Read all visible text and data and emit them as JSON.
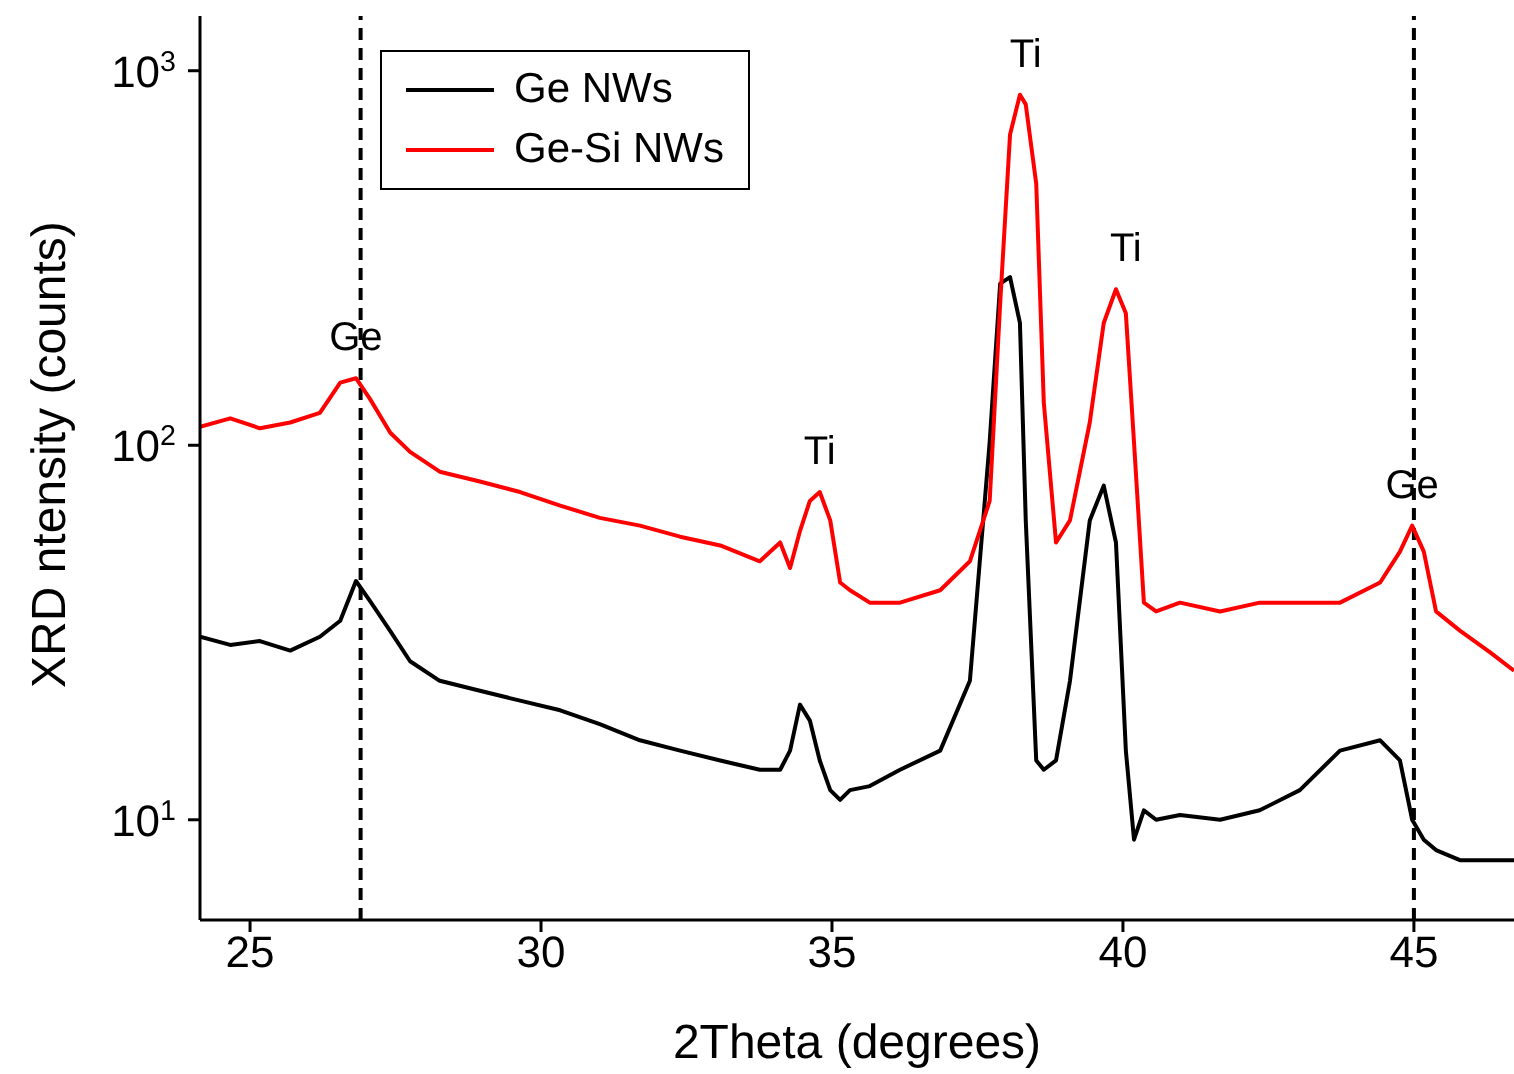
{
  "chart_data": {
    "type": "line",
    "xlabel": "2Theta (degrees)",
    "ylabel": "XRD ntensity (counts)",
    "log": "y",
    "xlim": [
      24.14,
      46.72
    ],
    "xticks": [
      25,
      30,
      35,
      40,
      45
    ],
    "ylim": [
      5.4,
      1400
    ],
    "yticks": [
      {
        "value": 10,
        "label": "10$^{1}$"
      },
      {
        "value": 100,
        "label": "10$^{2}$"
      },
      {
        "value": 1000,
        "label": "10$^{3}$"
      }
    ],
    "grid": false,
    "legend": "top left",
    "marker": "none",
    "line_style": "solid",
    "x": [
      24.14,
      24.66,
      25.17,
      25.69,
      26.2,
      26.55,
      26.82,
      27.06,
      27.41,
      27.75,
      28.26,
      28.95,
      29.64,
      30.33,
      31.01,
      31.7,
      32.39,
      33.08,
      33.76,
      34.11,
      34.28,
      34.45,
      34.62,
      34.79,
      34.97,
      35.14,
      35.31,
      35.65,
      36.17,
      36.86,
      37.37,
      37.71,
      37.89,
      38.06,
      38.23,
      38.33,
      38.51,
      38.64,
      38.85,
      39.09,
      39.43,
      39.67,
      39.88,
      40.05,
      40.19,
      40.36,
      40.57,
      40.98,
      41.67,
      42.35,
      43.04,
      43.73,
      44.42,
      44.76,
      44.97,
      45.17,
      45.38,
      45.79,
      46.31,
      46.72
    ],
    "series": [
      {
        "name": "Ge NWs",
        "color": "#000000",
        "values": [
          30.8,
          29.3,
          30,
          28.3,
          30.8,
          34,
          43.4,
          38.4,
          31.9,
          26.5,
          23.5,
          22.1,
          20.8,
          19.6,
          18,
          16.3,
          15.3,
          14.4,
          13.6,
          13.6,
          15.3,
          20.3,
          18.4,
          14.4,
          12,
          11.3,
          12,
          12.3,
          13.6,
          15.3,
          23.5,
          102,
          270,
          281,
          212,
          63,
          14.4,
          13.6,
          14.4,
          23.5,
          63,
          78,
          55,
          15.3,
          8.85,
          10.6,
          10,
          10.3,
          10,
          10.6,
          12,
          15.3,
          16.3,
          14.4,
          10,
          8.85,
          8.3,
          7.8,
          7.8,
          7.8
        ]
      },
      {
        "name": "Ge-Si NWs",
        "color": "#ff0000",
        "values": [
          112,
          118,
          111,
          115,
          122,
          147,
          151,
          133,
          108,
          96,
          85,
          80,
          75,
          69,
          64,
          61,
          57,
          54,
          49,
          55,
          47,
          59,
          71,
          75,
          63,
          43,
          41,
          38,
          38,
          41,
          49,
          71,
          239,
          676,
          863,
          813,
          499,
          130,
          55,
          63,
          115,
          212,
          261,
          225,
          102,
          38,
          36,
          38,
          36,
          38,
          38,
          38,
          43,
          52,
          61,
          52,
          36,
          32,
          28,
          25
        ]
      }
    ],
    "ref_lines": [
      {
        "axis": "x",
        "value": 26.9,
        "color": "#000000",
        "line_style": "dashed"
      },
      {
        "axis": "x",
        "value": 45,
        "color": "#000000",
        "line_style": "dashed"
      }
    ],
    "annotations": [
      {
        "text": "Ge",
        "x": 26.82,
        "y": 151
      },
      {
        "text": "Ti",
        "x": 34.79,
        "y": 75
      },
      {
        "text": "Ti",
        "x": 38.33,
        "y": 863
      },
      {
        "text": "Ti",
        "x": 40.05,
        "y": 261
      },
      {
        "text": "Ge",
        "x": 44.97,
        "y": 61
      }
    ]
  }
}
